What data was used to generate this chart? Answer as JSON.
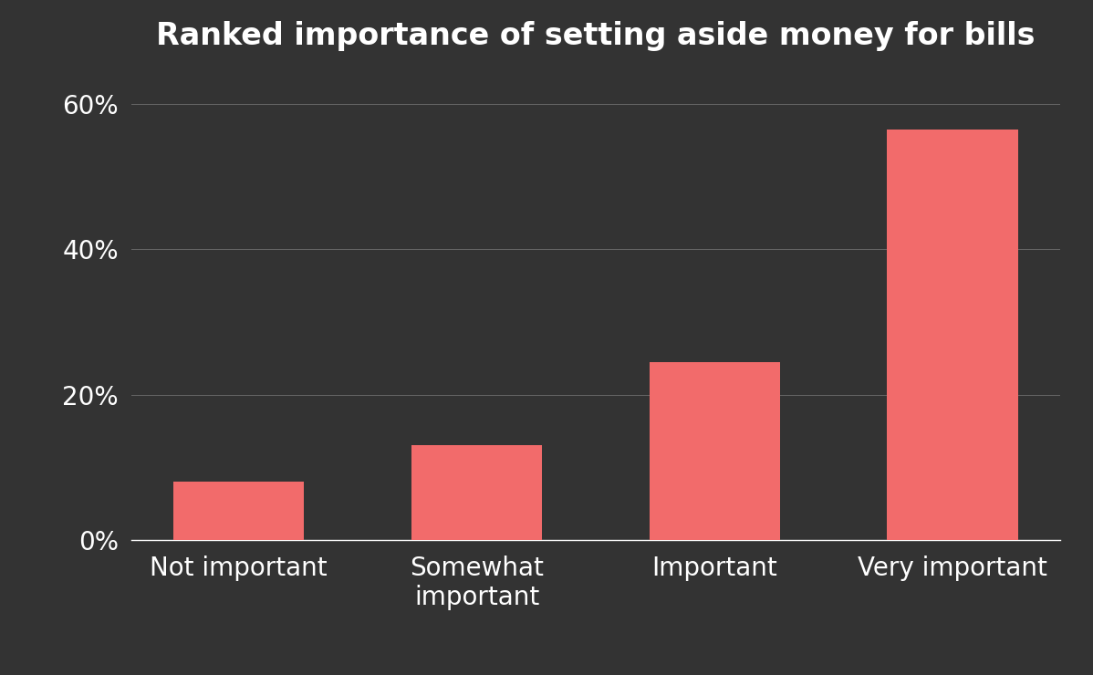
{
  "title": "Ranked importance of setting aside money for bills",
  "categories": [
    "Not important",
    "Somewhat\nimportant",
    "Important",
    "Very important"
  ],
  "values": [
    8.0,
    13.0,
    24.5,
    56.5
  ],
  "bar_color": "#f26b6b",
  "background_color": "#333333",
  "text_color": "#ffffff",
  "grid_color": "#666666",
  "yticks": [
    0,
    20,
    40,
    60
  ],
  "ylim": [
    0,
    65
  ],
  "title_fontsize": 24,
  "tick_fontsize": 20,
  "bar_width": 0.55
}
